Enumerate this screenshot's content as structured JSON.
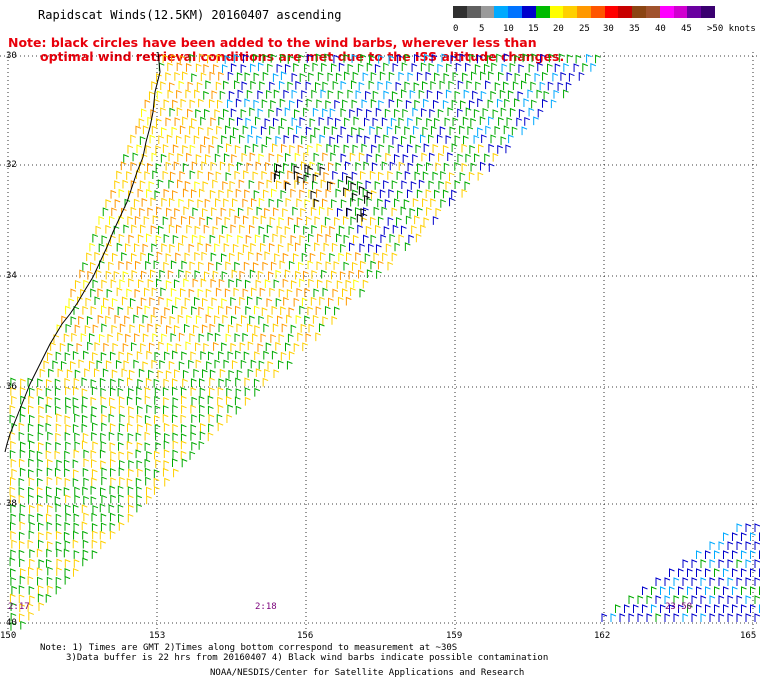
{
  "header": {
    "title": "Rapidscat Winds(12.5KM) 20160407 ascending",
    "note_line1": "Note: black circles have been added to the wind barbs, wherever less than",
    "note_line2": "optimal wind retrieval conditions are met due to the ISS altitude changes."
  },
  "colorbar": {
    "colors": [
      "#303030",
      "#606060",
      "#9a9a9a",
      "#00aaff",
      "#0073ff",
      "#0000cc",
      "#00bb00",
      "#ffff00",
      "#ffd000",
      "#ff9900",
      "#ff5500",
      "#ff0000",
      "#c80000",
      "#8b4513",
      "#a0522d",
      "#ff00ff",
      "#d000d0",
      "#6a00a0",
      "#3a0070"
    ],
    "labels": [
      "0",
      "5",
      "10",
      "15",
      "20",
      "25",
      "30",
      "35",
      "40",
      "45",
      ">50 knots"
    ]
  },
  "map": {
    "lat_labels": [
      "30",
      "32",
      "34",
      "36",
      "38",
      "40"
    ],
    "lon_labels": [
      "150",
      "153",
      "156",
      "159",
      "162",
      "165"
    ],
    "time_labels": [
      "2:17",
      "2:18",
      "23:50"
    ]
  },
  "footer": {
    "line1": "Note: 1) Times are GMT 2)Times along bottom correspond to measurement at ~30S",
    "line2": "3)Data buffer is 22 hrs from 20160407 4) Black wind barbs indicate possible contamination",
    "credit": "NOAA/NESDIS/Center for Satellite Applications and Research"
  }
}
